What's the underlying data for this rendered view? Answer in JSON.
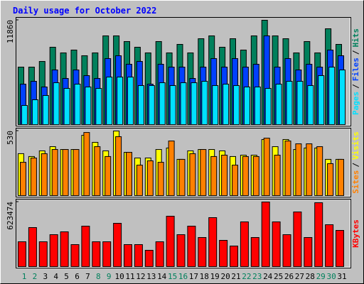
{
  "chart_data": {
    "type": "bar",
    "title": "Daily usage for October 2022",
    "legend_separator": "/",
    "categories": [
      "1",
      "2",
      "3",
      "4",
      "5",
      "6",
      "7",
      "8",
      "9",
      "10",
      "11",
      "12",
      "13",
      "14",
      "15",
      "16",
      "17",
      "18",
      "19",
      "20",
      "21",
      "22",
      "23",
      "24",
      "25",
      "26",
      "27",
      "28",
      "29",
      "30",
      "31"
    ],
    "category_colors": [
      "#00805c",
      "#00805c",
      "#000000",
      "#000000",
      "#000000",
      "#000000",
      "#000000",
      "#00805c",
      "#00805c",
      "#000000",
      "#000000",
      "#000000",
      "#000000",
      "#000000",
      "#00805c",
      "#00805c",
      "#000000",
      "#000000",
      "#000000",
      "#000000",
      "#000000",
      "#00805c",
      "#00805c",
      "#000000",
      "#000000",
      "#000000",
      "#000000",
      "#000000",
      "#00805c",
      "#00805c",
      "#000000"
    ],
    "panels": [
      {
        "ylim": [
          0,
          11860
        ],
        "yticks": [
          11860
        ],
        "series": [
          {
            "name": "Pages",
            "color": "#00e0ff",
            "values": [
              2244,
              2885,
              3366,
              4808,
              4167,
              4648,
              4328,
              4167,
              5450,
              5450,
              5450,
              4488,
              4488,
              4808,
              4488,
              4808,
              4808,
              4969,
              4488,
              4648,
              4488,
              4328,
              4328,
              4167,
              4648,
              4969,
              4969,
              4488,
              5610,
              6571,
              6251
            ]
          },
          {
            "name": "Files",
            "color": "#0040ff",
            "values": [
              4648,
              4969,
              4328,
              6251,
              5289,
              6251,
              5610,
              5289,
              7533,
              7854,
              6892,
              7213,
              4648,
              6892,
              6571,
              6571,
              5289,
              6571,
              7533,
              6571,
              7533,
              6571,
              6892,
              10098,
              6571,
              7533,
              6251,
              6892,
              6571,
              8495,
              7854
            ]
          },
          {
            "name": "Hits",
            "color": "#00805c",
            "values": [
              6570,
              6570,
              7210,
              8815,
              8175,
              8495,
              7855,
              8175,
              10097,
              10097,
              9456,
              8815,
              8175,
              9456,
              8175,
              9135,
              8175,
              9776,
              10097,
              8815,
              9776,
              8495,
              10097,
              11860,
              10097,
              9776,
              8175,
              9456,
              8175,
              10898,
              9135
            ]
          }
        ]
      },
      {
        "ylim": [
          0,
          530
        ],
        "yticks": [
          530
        ],
        "series": [
          {
            "name": "Sites",
            "color": "#ff8000",
            "values": [
              276,
              311,
              346,
              380,
              380,
              380,
              518,
              403,
              323,
              484,
              357,
              253,
              288,
              276,
              449,
              300,
              346,
              380,
              323,
              334,
              253,
              323,
              323,
              472,
              334,
              449,
              426,
              426,
              403,
              265,
              300
            ]
          },
          {
            "name": "Visits",
            "color": "#ffff00",
            "values": [
              346,
              323,
              369,
              403,
              380,
              380,
              495,
              438,
              369,
              530,
              357,
              311,
              311,
              380,
              392,
              300,
              369,
              380,
              380,
              369,
              323,
              334,
              334,
              461,
              403,
              461,
              380,
              392,
              392,
              300,
              300
            ]
          }
        ]
      },
      {
        "ylim": [
          0,
          623474
        ],
        "yticks": [
          623474
        ],
        "series": [
          {
            "name": "KBytes",
            "color": "#ff0000",
            "values": [
              243972,
              379512,
              243972,
              311742,
              338850,
              216864,
              393066,
              243972,
              243972,
              420174,
              216864,
              216864,
              162648,
              243972,
              487944,
              311742,
              393066,
              284634,
              474390,
              257526,
              203310,
              433728,
              284634,
              623474,
              433728,
              311742,
              528606,
              284634,
              616707,
              406620,
              352404
            ]
          }
        ]
      }
    ]
  }
}
